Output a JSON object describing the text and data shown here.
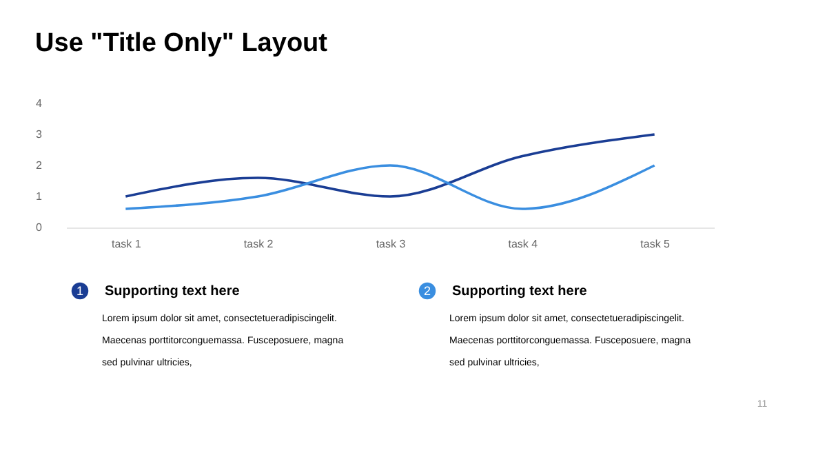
{
  "chart_data": {
    "type": "line",
    "title": "Use \"Title Only\" Layout",
    "categories": [
      "task 1",
      "task 2",
      "task 3",
      "task 4",
      "task 5"
    ],
    "series": [
      {
        "color": "#1a3d94",
        "values": [
          1,
          1.6,
          1,
          2.3,
          3
        ]
      },
      {
        "color": "#3a8ee0",
        "values": [
          0.6,
          1,
          2,
          0.6,
          2
        ]
      }
    ],
    "ylim": [
      0,
      4
    ],
    "yticks": [
      0,
      1,
      2,
      3,
      4
    ],
    "grid": false,
    "legend": false,
    "marker": "none",
    "line_style": "solid",
    "annotations": [
      "1",
      "Supporting text here",
      "Lorem ipsum dolor sit amet, consectetueradipiscingelit.\nMaecenas porttitorconguemassa. Fusceposuere, magna\nsed pulvinar ultricies,",
      "2",
      "Supporting text here",
      "Lorem ipsum dolor sit amet, consectetueradipiscingelit.\nMaecenas porttitorconguemassa. Fusceposuere, magna\nsed pulvinar ultricies,",
      "11"
    ]
  }
}
